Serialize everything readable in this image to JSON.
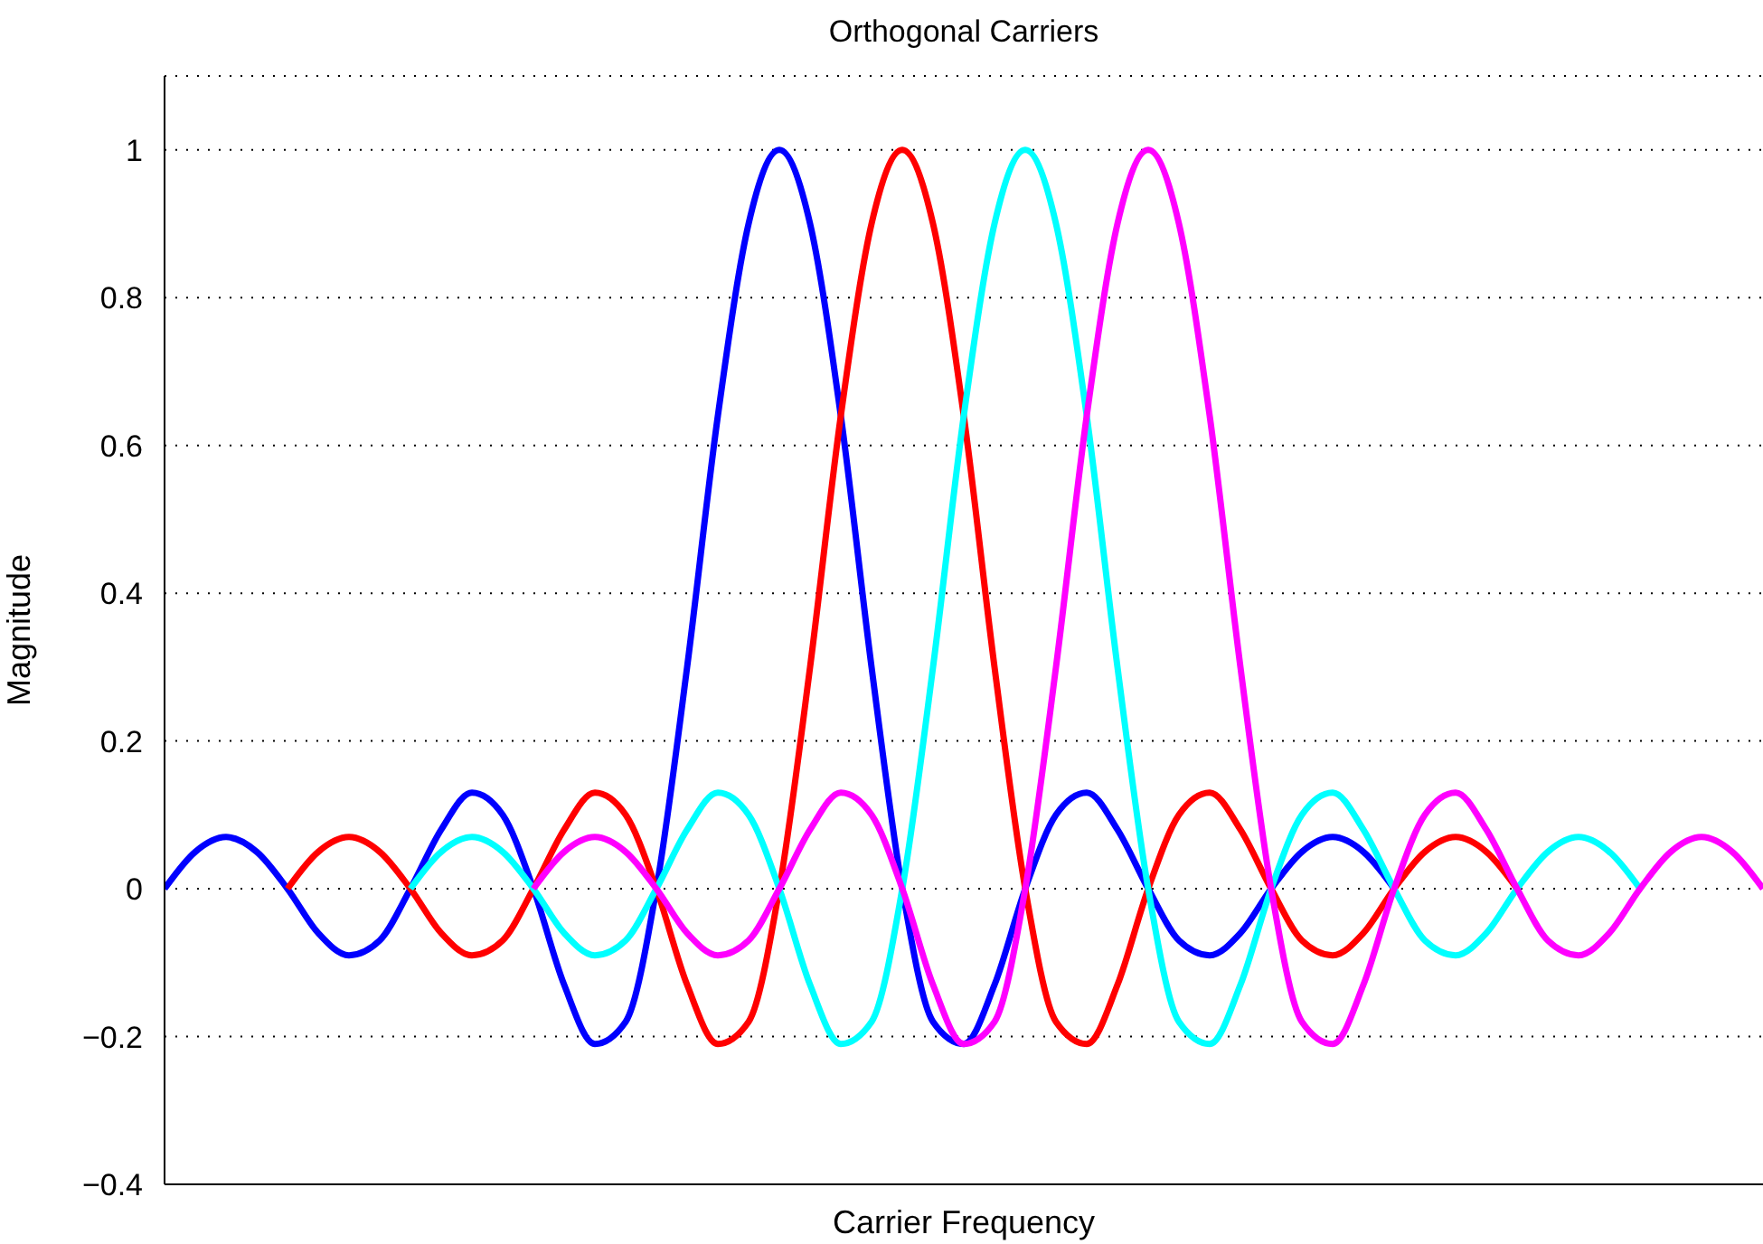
{
  "chart_data": {
    "type": "line",
    "title": "Orthogonal Carriers",
    "xlabel": "Carrier Frequency",
    "ylabel": "Magnitude",
    "categories": [
      null,
      null,
      null,
      null,
      null,
      null,
      null,
      null,
      null,
      null,
      null,
      null,
      null,
      null,
      null,
      null,
      null,
      null,
      null,
      null,
      null,
      null,
      null,
      null,
      null,
      null,
      null,
      null,
      null,
      null,
      null,
      null,
      null,
      null,
      null,
      null,
      null,
      null,
      null,
      null,
      null,
      null,
      null,
      null,
      null,
      null,
      null,
      null,
      null,
      null,
      null,
      null,
      null
    ],
    "series": [
      {
        "color": "#0000ff",
        "values": [
          0,
          0.05,
          0.07,
          0.05,
          0,
          -0.06,
          -0.09,
          -0.07,
          0,
          0.08,
          0.13,
          0.1,
          0,
          -0.13,
          -0.21,
          -0.18,
          0,
          0.3,
          0.64,
          0.9,
          1,
          0.9,
          0.64,
          0.3,
          0,
          -0.18,
          -0.21,
          -0.13,
          0,
          0.1,
          0.13,
          0.08,
          0,
          -0.07,
          -0.09,
          -0.06,
          0,
          0.05,
          0.07,
          0.05,
          0,
          null,
          null,
          null,
          null,
          null,
          null,
          null,
          null,
          null,
          null,
          null,
          null
        ]
      },
      {
        "color": "#ff0000",
        "values": [
          null,
          null,
          null,
          null,
          0,
          0.05,
          0.07,
          0.05,
          0,
          -0.06,
          -0.09,
          -0.07,
          0,
          0.08,
          0.13,
          0.1,
          0,
          -0.13,
          -0.21,
          -0.18,
          0,
          0.3,
          0.64,
          0.9,
          1,
          0.9,
          0.64,
          0.3,
          0,
          -0.18,
          -0.21,
          -0.13,
          0,
          0.1,
          0.13,
          0.08,
          0,
          -0.07,
          -0.09,
          -0.06,
          0,
          0.05,
          0.07,
          0.05,
          0,
          null,
          null,
          null,
          null,
          null,
          null,
          null,
          null
        ]
      },
      {
        "color": "#00ffff",
        "values": [
          null,
          null,
          null,
          null,
          null,
          null,
          null,
          null,
          0,
          0.05,
          0.07,
          0.05,
          0,
          -0.06,
          -0.09,
          -0.07,
          0,
          0.08,
          0.13,
          0.1,
          0,
          -0.13,
          -0.21,
          -0.18,
          0,
          0.3,
          0.64,
          0.9,
          1,
          0.9,
          0.64,
          0.3,
          0,
          -0.18,
          -0.21,
          -0.13,
          0,
          0.1,
          0.13,
          0.08,
          0,
          -0.07,
          -0.09,
          -0.06,
          0,
          0.05,
          0.07,
          0.05,
          0,
          null,
          null,
          null,
          null
        ]
      },
      {
        "color": "#ff00ff",
        "values": [
          null,
          null,
          null,
          null,
          null,
          null,
          null,
          null,
          null,
          null,
          null,
          null,
          0,
          0.05,
          0.07,
          0.05,
          0,
          -0.06,
          -0.09,
          -0.07,
          0,
          0.08,
          0.13,
          0.1,
          0,
          -0.13,
          -0.21,
          -0.18,
          0,
          0.3,
          0.64,
          0.9,
          1,
          0.9,
          0.64,
          0.3,
          0,
          -0.18,
          -0.21,
          -0.13,
          0,
          0.1,
          0.13,
          0.08,
          0,
          -0.07,
          -0.09,
          -0.06,
          0,
          0.05,
          0.07,
          0.05,
          0
        ]
      }
    ],
    "ylim": [
      -0.4,
      1.1
    ],
    "yticks": [
      {
        "value": -0.4,
        "label": "−0.4"
      },
      {
        "value": -0.2,
        "label": "−0.2"
      },
      0,
      0.2,
      0.4,
      0.6,
      0.8,
      1
    ],
    "grid": "y"
  }
}
